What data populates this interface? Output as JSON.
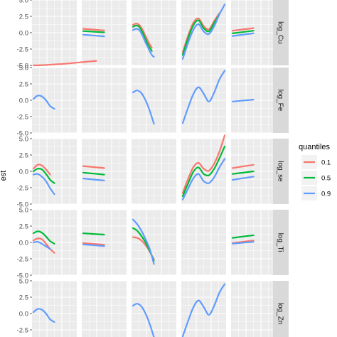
{
  "chart_data": {
    "type": "line",
    "ylabel": "est",
    "ylim": [
      -5,
      5
    ],
    "yticks": [
      "5.0",
      "2.5",
      "0.0",
      "-2.5",
      "-5.0"
    ],
    "rows": [
      "log_Cu",
      "log_Fe",
      "log_se",
      "log_Ti",
      "log_Zn"
    ],
    "legend": {
      "title": "quantiles",
      "entries": [
        {
          "label": "0.1",
          "color": "#f8766d"
        },
        {
          "label": "0.5",
          "color": "#00ba38"
        },
        {
          "label": "0.9",
          "color": "#619cff"
        }
      ]
    },
    "panels": [
      {
        "row": 0,
        "col": 0,
        "curves": [
          {
            "q": "0.1",
            "x": [
              0.0,
              0.5,
              1.0,
              1.5,
              2.0,
              2.5,
              3.0
            ],
            "y": [
              -5.0,
              -4.95,
              -4.85,
              -4.75,
              -4.6,
              -4.45,
              -4.3
            ]
          }
        ]
      },
      {
        "row": 0,
        "col": 1,
        "curves": [
          {
            "q": "0.1",
            "x": [
              0.0,
              1.0
            ],
            "y": [
              0.6,
              0.35
            ]
          },
          {
            "q": "0.5",
            "x": [
              0.0,
              1.0
            ],
            "y": [
              0.25,
              0.05
            ]
          },
          {
            "q": "0.9",
            "x": [
              0.0,
              1.0
            ],
            "y": [
              -0.3,
              -0.55
            ]
          }
        ]
      },
      {
        "row": 0,
        "col": 2,
        "curves": [
          {
            "q": "0.1",
            "x": [
              0.0,
              0.15,
              0.3,
              0.45,
              0.6,
              0.75,
              0.9
            ],
            "y": [
              1.2,
              1.4,
              1.2,
              0.5,
              -0.5,
              -1.5,
              -2.3
            ]
          },
          {
            "q": "0.5",
            "x": [
              0.0,
              0.15,
              0.3,
              0.45,
              0.6,
              0.75,
              0.9
            ],
            "y": [
              0.9,
              1.1,
              0.9,
              0.1,
              -1.0,
              -2.0,
              -2.8
            ]
          },
          {
            "q": "0.9",
            "x": [
              0.0,
              0.15,
              0.3,
              0.45,
              0.6,
              0.75,
              0.9,
              1.0
            ],
            "y": [
              0.4,
              0.6,
              0.4,
              -0.4,
              -1.5,
              -2.5,
              -3.4,
              -3.7
            ]
          }
        ]
      },
      {
        "row": 0,
        "col": 3,
        "curves": [
          {
            "q": "0.1",
            "x": [
              0.0,
              0.25,
              0.5,
              0.75,
              1.0,
              1.25,
              1.5,
              1.75
            ],
            "y": [
              -3.0,
              -0.5,
              1.5,
              2.2,
              1.0,
              0.5,
              1.8,
              3.0
            ]
          },
          {
            "q": "0.5",
            "x": [
              0.0,
              0.25,
              0.5,
              0.75,
              1.0,
              1.25,
              1.5,
              1.75
            ],
            "y": [
              -3.4,
              -0.9,
              1.1,
              1.9,
              0.7,
              0.2,
              1.5,
              2.8
            ]
          },
          {
            "q": "0.9",
            "x": [
              0.0,
              0.25,
              0.5,
              0.75,
              1.0,
              1.25,
              1.5,
              1.75,
              2.0
            ],
            "y": [
              -4.0,
              -1.6,
              0.4,
              1.3,
              0.2,
              -0.2,
              1.0,
              2.8,
              4.3
            ]
          }
        ]
      },
      {
        "row": 0,
        "col": 4,
        "curves": [
          {
            "q": "0.1",
            "x": [
              0.0,
              1.0
            ],
            "y": [
              0.3,
              0.7
            ]
          },
          {
            "q": "0.5",
            "x": [
              0.0,
              1.0
            ],
            "y": [
              -0.1,
              0.3
            ]
          },
          {
            "q": "0.9",
            "x": [
              0.0,
              1.0
            ],
            "y": [
              -0.5,
              -0.1
            ]
          }
        ]
      },
      {
        "row": 1,
        "col": 0,
        "curves": [
          {
            "q": "0.9",
            "x": [
              0.0,
              0.2,
              0.4,
              0.6,
              0.8,
              1.0
            ],
            "y": [
              0.2,
              0.7,
              0.6,
              0.0,
              -0.9,
              -1.3
            ]
          }
        ]
      },
      {
        "row": 1,
        "col": 2,
        "curves": [
          {
            "q": "0.9",
            "x": [
              0.0,
              0.2,
              0.4,
              0.6,
              0.8,
              1.0
            ],
            "y": [
              1.2,
              1.5,
              1.1,
              0.0,
              -1.6,
              -3.6
            ]
          }
        ]
      },
      {
        "row": 1,
        "col": 3,
        "curves": [
          {
            "q": "0.9",
            "x": [
              0.0,
              0.25,
              0.5,
              0.75,
              1.0,
              1.25,
              1.5,
              1.75,
              2.0
            ],
            "y": [
              -3.5,
              -1.2,
              0.9,
              2.0,
              1.0,
              -0.2,
              1.2,
              3.2,
              4.5
            ]
          }
        ]
      },
      {
        "row": 1,
        "col": 4,
        "curves": [
          {
            "q": "0.9",
            "x": [
              0.0,
              1.0
            ],
            "y": [
              -0.2,
              0.1
            ]
          }
        ]
      },
      {
        "row": 2,
        "col": 0,
        "curves": [
          {
            "q": "0.1",
            "x": [
              0.0,
              0.2,
              0.4,
              0.6,
              0.8
            ],
            "y": [
              0.4,
              1.0,
              0.9,
              0.3,
              -0.5
            ]
          },
          {
            "q": "0.5",
            "x": [
              0.0,
              0.2,
              0.4,
              0.6,
              0.8,
              1.0
            ],
            "y": [
              0.0,
              0.4,
              0.3,
              -0.4,
              -1.3,
              -1.8
            ]
          },
          {
            "q": "0.9",
            "x": [
              0.0,
              0.2,
              0.4,
              0.6,
              0.8,
              1.0
            ],
            "y": [
              -0.5,
              -0.4,
              -0.8,
              -1.5,
              -2.6,
              -3.5
            ]
          }
        ]
      },
      {
        "row": 2,
        "col": 1,
        "curves": [
          {
            "q": "0.1",
            "x": [
              0.0,
              1.0
            ],
            "y": [
              0.8,
              0.5
            ]
          },
          {
            "q": "0.5",
            "x": [
              0.0,
              1.0
            ],
            "y": [
              -0.2,
              -0.5
            ]
          },
          {
            "q": "0.9",
            "x": [
              0.0,
              1.0
            ],
            "y": [
              -1.1,
              -1.4
            ]
          }
        ]
      },
      {
        "row": 2,
        "col": 3,
        "curves": [
          {
            "q": "0.1",
            "x": [
              0.0,
              0.25,
              0.5,
              0.75,
              1.0,
              1.25,
              1.5,
              1.75,
              2.0
            ],
            "y": [
              -3.3,
              -1.2,
              0.6,
              1.3,
              0.4,
              0.1,
              1.2,
              3.0,
              5.5
            ]
          },
          {
            "q": "0.5",
            "x": [
              0.0,
              0.25,
              0.5,
              0.75,
              1.0,
              1.25,
              1.5,
              1.75,
              2.0
            ],
            "y": [
              -3.8,
              -1.9,
              -0.1,
              0.6,
              -0.4,
              -0.6,
              0.4,
              2.0,
              3.8
            ]
          },
          {
            "q": "0.9",
            "x": [
              0.0,
              0.25,
              0.5,
              0.75,
              1.0,
              1.25,
              1.5,
              1.75,
              2.0
            ],
            "y": [
              -4.3,
              -2.7,
              -1.1,
              -0.4,
              -1.5,
              -1.8,
              -0.9,
              0.6,
              1.9
            ]
          }
        ]
      },
      {
        "row": 2,
        "col": 4,
        "curves": [
          {
            "q": "0.1",
            "x": [
              0.0,
              1.0
            ],
            "y": [
              0.5,
              1.0
            ]
          },
          {
            "q": "0.5",
            "x": [
              0.0,
              1.0
            ],
            "y": [
              -0.4,
              0.0
            ]
          },
          {
            "q": "0.9",
            "x": [
              0.0,
              1.0
            ],
            "y": [
              -1.3,
              -0.8
            ]
          }
        ]
      },
      {
        "row": 3,
        "col": 0,
        "curves": [
          {
            "q": "0.1",
            "x": [
              0.0,
              0.2,
              0.4,
              0.6,
              0.8,
              1.0
            ],
            "y": [
              0.3,
              0.6,
              0.5,
              -0.2,
              -1.0,
              -1.6
            ]
          },
          {
            "q": "0.5",
            "x": [
              0.0,
              0.2,
              0.4,
              0.6,
              0.8,
              1.0
            ],
            "y": [
              1.4,
              1.7,
              1.5,
              0.9,
              0.2,
              -0.2
            ]
          },
          {
            "q": "0.9",
            "x": [
              0.0,
              0.2,
              0.4,
              0.6,
              0.8
            ],
            "y": [
              0.0,
              0.1,
              -0.2,
              -0.6,
              -1.0
            ]
          }
        ]
      },
      {
        "row": 3,
        "col": 1,
        "curves": [
          {
            "q": "0.1",
            "x": [
              0.0,
              1.0
            ],
            "y": [
              -0.1,
              -0.35
            ]
          },
          {
            "q": "0.5",
            "x": [
              0.0,
              1.0
            ],
            "y": [
              1.4,
              1.2
            ]
          },
          {
            "q": "0.9",
            "x": [
              0.0,
              1.0
            ],
            "y": [
              -0.3,
              -0.55
            ]
          }
        ]
      },
      {
        "row": 3,
        "col": 2,
        "curves": [
          {
            "q": "0.1",
            "x": [
              0.0,
              0.2,
              0.4,
              0.6,
              0.8,
              1.0
            ],
            "y": [
              0.8,
              0.7,
              0.3,
              -0.4,
              -1.4,
              -2.6
            ]
          },
          {
            "q": "0.5",
            "x": [
              0.0,
              0.2,
              0.4,
              0.6,
              0.8,
              1.0
            ],
            "y": [
              2.2,
              1.8,
              1.0,
              0.0,
              -1.3,
              -2.8
            ]
          },
          {
            "q": "0.9",
            "x": [
              0.0,
              0.2,
              0.4,
              0.6,
              0.8,
              1.0
            ],
            "y": [
              3.5,
              2.8,
              1.8,
              0.5,
              -1.0,
              -3.3
            ]
          }
        ]
      },
      {
        "row": 3,
        "col": 4,
        "curves": [
          {
            "q": "0.1",
            "x": [
              0.0,
              1.0
            ],
            "y": [
              -0.1,
              0.3
            ]
          },
          {
            "q": "0.5",
            "x": [
              0.0,
              1.0
            ],
            "y": [
              0.7,
              1.1
            ]
          },
          {
            "q": "0.9",
            "x": [
              0.0,
              1.0
            ],
            "y": [
              -0.2,
              0.1
            ]
          }
        ]
      },
      {
        "row": 4,
        "col": 0,
        "curves": [
          {
            "q": "0.9",
            "x": [
              0.0,
              0.2,
              0.4,
              0.6,
              0.8,
              1.0
            ],
            "y": [
              0.2,
              0.7,
              0.6,
              0.0,
              -0.9,
              -1.3
            ]
          }
        ]
      },
      {
        "row": 4,
        "col": 2,
        "curves": [
          {
            "q": "0.9",
            "x": [
              0.0,
              0.2,
              0.4,
              0.6,
              0.8,
              1.0
            ],
            "y": [
              1.2,
              1.5,
              1.1,
              0.0,
              -1.6,
              -3.6
            ]
          }
        ]
      },
      {
        "row": 4,
        "col": 3,
        "curves": [
          {
            "q": "0.9",
            "x": [
              0.0,
              0.25,
              0.5,
              0.75,
              1.0,
              1.25,
              1.5,
              1.75,
              2.0
            ],
            "y": [
              -3.5,
              -1.2,
              0.9,
              2.0,
              1.0,
              -0.2,
              1.2,
              3.2,
              4.5
            ]
          }
        ]
      },
      {
        "row": 4,
        "col": 4,
        "curves": []
      }
    ]
  }
}
